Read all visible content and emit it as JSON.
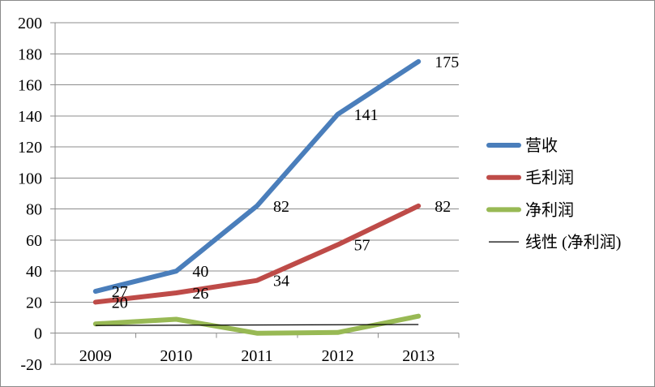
{
  "chart_data": {
    "type": "line",
    "categories": [
      "2009",
      "2010",
      "2011",
      "2012",
      "2013"
    ],
    "ylim": [
      -20,
      200
    ],
    "yticks": [
      200,
      180,
      160,
      140,
      120,
      100,
      80,
      60,
      40,
      20,
      0,
      -20
    ],
    "grid": true,
    "legend_position": "right",
    "series": [
      {
        "name": "营收",
        "color": "#4a7ebb",
        "values": [
          27,
          40,
          82,
          141,
          175
        ],
        "data_labels": true
      },
      {
        "name": "毛利润",
        "color": "#be4b48",
        "values": [
          20,
          26,
          34,
          57,
          82
        ],
        "data_labels": true
      },
      {
        "name": "净利润",
        "color": "#98b954",
        "values": [
          6,
          9,
          0,
          0.5,
          11
        ],
        "data_labels": false
      }
    ],
    "trendline": {
      "name": "线性 (净利润)",
      "color": "#000000"
    }
  }
}
